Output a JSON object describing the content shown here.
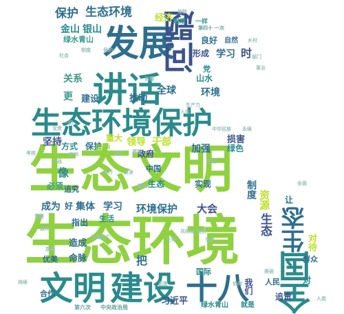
{
  "word_cloud": {
    "words": [
      {
        "text": "生态文明",
        "color": "#8fd13f"
      },
      {
        "text": "生态环境",
        "color": "#8fd13f"
      },
      {
        "text": "生态环境保护",
        "color": "#2a8b8c"
      },
      {
        "text": "发展",
        "color": "#2e6e8e"
      },
      {
        "text": "讲话",
        "color": "#2a8b8c"
      },
      {
        "text": "文明",
        "color": "#2a8b8c"
      },
      {
        "text": "建设",
        "color": "#2a8b8c"
      },
      {
        "text": "全国",
        "color": "#2a8b8c"
      },
      {
        "text": "生态",
        "color": "#2e6e8e"
      },
      {
        "text": "问题",
        "color": "#3b528b"
      },
      {
        "text": "十八",
        "color": "#2e6e8e"
      },
      {
        "text": "保护",
        "color": "#2e6e8e"
      },
      {
        "text": "生态环境",
        "color": "#2e6e8e"
      },
      {
        "text": "金山",
        "color": "#2a8b8c"
      },
      {
        "text": "银山",
        "color": "#2a8b8c"
      },
      {
        "text": "绿水青山",
        "color": "#3b9b8c"
      },
      {
        "text": "经济",
        "color": "#bddf26"
      },
      {
        "text": "眼睛",
        "color": "#3b9b8c"
      },
      {
        "text": "一样",
        "color": "#3b9b8c"
      },
      {
        "text": "第四十",
        "color": "#6aa0a0"
      },
      {
        "text": "一次",
        "color": "#6aa0a0"
      },
      {
        "text": "良好",
        "color": "#2e6e8e"
      },
      {
        "text": "自然",
        "color": "#2e6e8e"
      },
      {
        "text": "形成",
        "color": "#3b528b"
      },
      {
        "text": "学习",
        "color": "#2e6e8e"
      },
      {
        "text": "时",
        "color": "#3b528b"
      },
      {
        "text": "山水",
        "color": "#2a8b8c"
      },
      {
        "text": "党",
        "color": "#2a8b8c"
      },
      {
        "text": "关系",
        "color": "#3b9b8c"
      },
      {
        "text": "更",
        "color": "#3b9b8c"
      },
      {
        "text": "全球",
        "color": "#2e6e8e"
      },
      {
        "text": "建设",
        "color": "#2e6e8e"
      },
      {
        "text": "推动",
        "color": "#2e6e8e"
      },
      {
        "text": "环境",
        "color": "#2e6e8e"
      },
      {
        "text": "损害",
        "color": "#3b528b"
      },
      {
        "text": "坚持",
        "color": "#3b528b"
      },
      {
        "text": "重大",
        "color": "#bddf26"
      },
      {
        "text": "领导",
        "color": "#bddf26"
      },
      {
        "text": "干部",
        "color": "#bddf26"
      },
      {
        "text": "政府",
        "color": "#3b528b"
      },
      {
        "text": "加强",
        "color": "#2e6e8e"
      },
      {
        "text": "绿色",
        "color": "#2a8b8c"
      },
      {
        "text": "方式",
        "color": "#2a8b8c"
      },
      {
        "text": "保护",
        "color": "#2e6e8e"
      },
      {
        "text": "中国",
        "color": "#2e6e8e"
      },
      {
        "text": "生态",
        "color": "#2a8b8c"
      },
      {
        "text": "实现",
        "color": "#2e6e8e"
      },
      {
        "text": "像",
        "color": "#2a8b8c"
      },
      {
        "text": "必须",
        "color": "#3b9b8c"
      },
      {
        "text": "追究",
        "color": "#2e6e8e"
      },
      {
        "text": "制度",
        "color": "#2e6e8e"
      },
      {
        "text": "资源",
        "color": "#bddf26"
      },
      {
        "text": "让",
        "color": "#2e6e8e"
      },
      {
        "text": "成为",
        "color": "#2e6e8e"
      },
      {
        "text": "好",
        "color": "#2e6e8e"
      },
      {
        "text": "集体",
        "color": "#2e6e8e"
      },
      {
        "text": "学习",
        "color": "#2e6e8e"
      },
      {
        "text": "环境保护",
        "color": "#2e6e8e"
      },
      {
        "text": "大会",
        "color": "#3b528b"
      },
      {
        "text": "指出",
        "color": "#2e6e8e"
      },
      {
        "text": "生活",
        "color": "#2a8b8c"
      },
      {
        "text": "造成",
        "color": "#2e6e8e"
      },
      {
        "text": "生态",
        "color": "#3b528b"
      },
      {
        "text": "命脉",
        "color": "#2e6e8e"
      },
      {
        "text": "对待",
        "color": "#bddf26"
      },
      {
        "text": "群众",
        "color": "#2e6e8e"
      },
      {
        "text": "优美",
        "color": "#2e6e8e"
      },
      {
        "text": "把",
        "color": "#2e6e8e"
      },
      {
        "text": "国际",
        "color": "#2a8b8c"
      },
      {
        "text": "合作",
        "color": "#2e6e8e"
      },
      {
        "text": "习近平",
        "color": "#3b528b"
      },
      {
        "text": "人民",
        "color": "#2e6e8e"
      },
      {
        "text": "对",
        "color": "#2a8b8c"
      },
      {
        "text": "追责",
        "color": "#3b528b"
      },
      {
        "text": "我们",
        "color": "#3b528b"
      },
      {
        "text": "绿水青山",
        "color": "#2a8b8c"
      },
      {
        "text": "就是",
        "color": "#2a8b8c"
      },
      {
        "text": "中央政治局",
        "color": "#6aa0a0"
      },
      {
        "text": "第六次",
        "color": "#6aa0a0"
      },
      {
        "text": "保护",
        "color": "#8fd13f"
      },
      {
        "text": "加快",
        "color": "#9ac0b8"
      },
      {
        "text": "制度",
        "color": "#9ac0b8"
      },
      {
        "text": "保护",
        "color": "#9ac0b8"
      },
      {
        "text": "乡村",
        "color": "#9ac0b8"
      },
      {
        "text": "部门",
        "color": "#9ac0b8"
      },
      {
        "text": "社会",
        "color": "#9ac0b8"
      },
      {
        "text": "事业",
        "color": "#9ac0b8"
      },
      {
        "text": "治理",
        "color": "#9ac0b8"
      },
      {
        "text": "一切",
        "color": "#9ac0b8"
      },
      {
        "text": "人民",
        "color": "#9ac0b8"
      },
      {
        "text": "生产力",
        "color": "#9ac0b8"
      },
      {
        "text": "永续",
        "color": "#9ac0b8"
      },
      {
        "text": "中华民族",
        "color": "#9ac0b8"
      },
      {
        "text": "宝贵",
        "color": "#9ac0b8"
      },
      {
        "text": "空间",
        "color": "#9ac0b8"
      },
      {
        "text": "红线",
        "color": "#9ac0b8"
      },
      {
        "text": "考核",
        "color": "#9ac0b8"
      },
      {
        "text": "民生",
        "color": "#9ac0b8"
      },
      {
        "text": "福祉",
        "color": "#9ac0b8"
      },
      {
        "text": "实行",
        "color": "#9ac0b8"
      },
      {
        "text": "终身",
        "color": "#9ac0b8"
      },
      {
        "text": "解决",
        "color": "#9ac0b8"
      },
      {
        "text": "引领",
        "color": "#9ac0b8"
      },
      {
        "text": "特别",
        "color": "#9ac0b8"
      },
      {
        "text": "共同体",
        "color": "#9ac0b8"
      },
      {
        "text": "生命",
        "color": "#9ac0b8"
      },
      {
        "text": "关键",
        "color": "#9ac0b8"
      },
      {
        "text": "这个",
        "color": "#9ac0b8"
      },
      {
        "text": "质量",
        "color": "#9ac0b8"
      },
      {
        "text": "持续",
        "color": "#9ac0b8"
      },
      {
        "text": "破坏",
        "color": "#9ac0b8"
      },
      {
        "text": "重要",
        "color": "#9ac0b8"
      },
      {
        "text": "态度",
        "color": "#9ac0b8"
      },
      {
        "text": "协同",
        "color": "#9ac0b8"
      },
      {
        "text": "美丽",
        "color": "#9ac0b8"
      },
      {
        "text": "人类",
        "color": "#9ac0b8"
      },
      {
        "text": "全面",
        "color": "#9ac0b8"
      },
      {
        "text": "产品",
        "color": "#9ac0b8"
      }
    ]
  }
}
